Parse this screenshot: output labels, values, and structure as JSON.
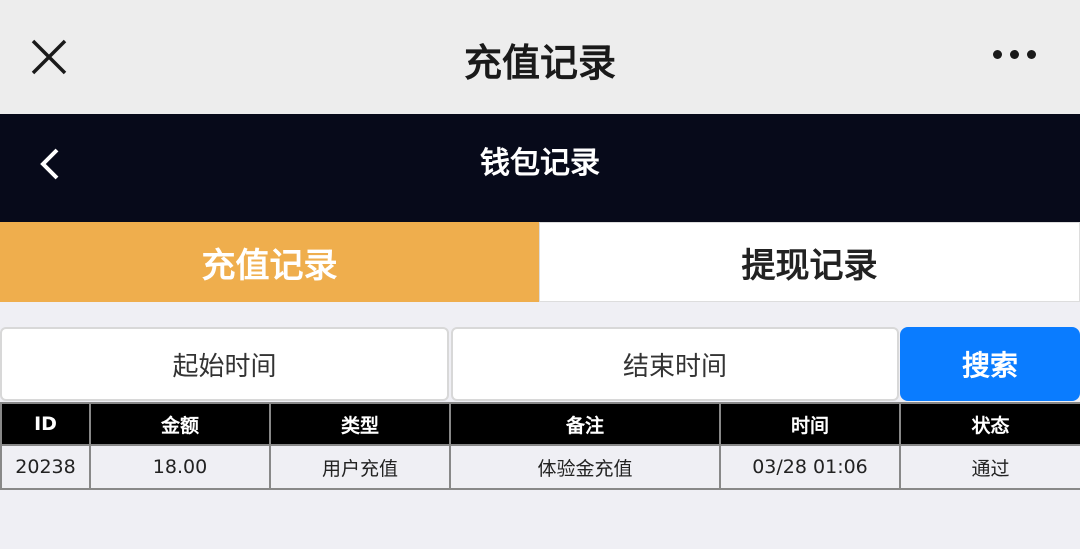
{
  "topbar": {
    "title": "充值记录",
    "close_icon": "close-icon",
    "more_icon": "more-icon"
  },
  "navbar": {
    "title": "钱包记录",
    "back_icon": "chevron-left-icon"
  },
  "tabs": [
    {
      "label": "充值记录",
      "active": true
    },
    {
      "label": "提现记录",
      "active": false
    }
  ],
  "search": {
    "start_placeholder": "起始时间",
    "end_placeholder": "结束时间",
    "button": "搜索"
  },
  "colors": {
    "active_tab": "#efae4d",
    "search_button": "#0a7cff",
    "navbar": "#070a1a"
  },
  "table": {
    "headers": [
      "ID",
      "金额",
      "类型",
      "备注",
      "时间",
      "状态"
    ],
    "rows": [
      [
        "20238",
        "18.00",
        "用户充值",
        "体验金充值",
        "03/28 01:06",
        "通过"
      ]
    ]
  }
}
